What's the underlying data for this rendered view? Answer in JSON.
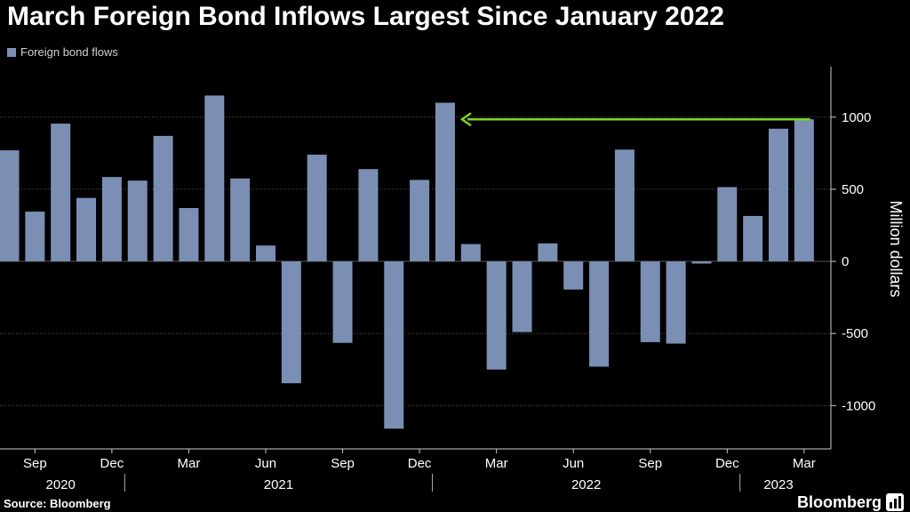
{
  "title": "March Foreign Bond Inflows Largest Since January 2022",
  "legend": {
    "label": "Foreign bond flows"
  },
  "source": "Source: Bloomberg",
  "brand": "Bloomberg",
  "colors": {
    "bar": "#7b8fb4",
    "arrow": "#7ed321",
    "grid": "#555555",
    "background": "#000000"
  },
  "chart_data": {
    "type": "bar",
    "title": "March Foreign Bond Inflows Largest Since January 2022",
    "ylabel": "Million dollars",
    "ylim": [
      -1300,
      1350
    ],
    "yticks": [
      -1000,
      -500,
      0,
      500,
      1000
    ],
    "grid": true,
    "legend_position": "top-left",
    "series": [
      {
        "name": "Foreign bond flows",
        "categories": [
          "2020-08",
          "2020-09",
          "2020-10",
          "2020-11",
          "2020-12",
          "2021-01",
          "2021-02",
          "2021-03",
          "2021-04",
          "2021-05",
          "2021-06",
          "2021-07",
          "2021-08",
          "2021-09",
          "2021-10",
          "2021-11",
          "2021-12",
          "2022-01",
          "2022-02",
          "2022-03",
          "2022-04",
          "2022-05",
          "2022-06",
          "2022-07",
          "2022-08",
          "2022-09",
          "2022-10",
          "2022-11",
          "2022-12",
          "2023-01",
          "2023-02",
          "2023-03"
        ],
        "values": [
          770,
          345,
          955,
          440,
          585,
          560,
          870,
          370,
          1150,
          575,
          110,
          -845,
          740,
          -565,
          640,
          -1160,
          565,
          1100,
          120,
          -750,
          -490,
          125,
          -195,
          -730,
          775,
          -560,
          -570,
          -15,
          515,
          315,
          920,
          985
        ]
      }
    ],
    "x_tick_labels": [
      {
        "category": "2020-09",
        "label": "Sep"
      },
      {
        "category": "2020-12",
        "label": "Dec"
      },
      {
        "category": "2021-03",
        "label": "Mar"
      },
      {
        "category": "2021-06",
        "label": "Jun"
      },
      {
        "category": "2021-09",
        "label": "Sep"
      },
      {
        "category": "2021-12",
        "label": "Dec"
      },
      {
        "category": "2022-03",
        "label": "Mar"
      },
      {
        "category": "2022-06",
        "label": "Jun"
      },
      {
        "category": "2022-09",
        "label": "Sep"
      },
      {
        "category": "2022-12",
        "label": "Dec"
      },
      {
        "category": "2023-03",
        "label": "Mar"
      }
    ],
    "year_labels": [
      "2020",
      "2021",
      "2022",
      "2023"
    ],
    "annotation": {
      "type": "arrow",
      "from_category": "2023-03",
      "to_category": "2022-01",
      "value": 985
    }
  }
}
